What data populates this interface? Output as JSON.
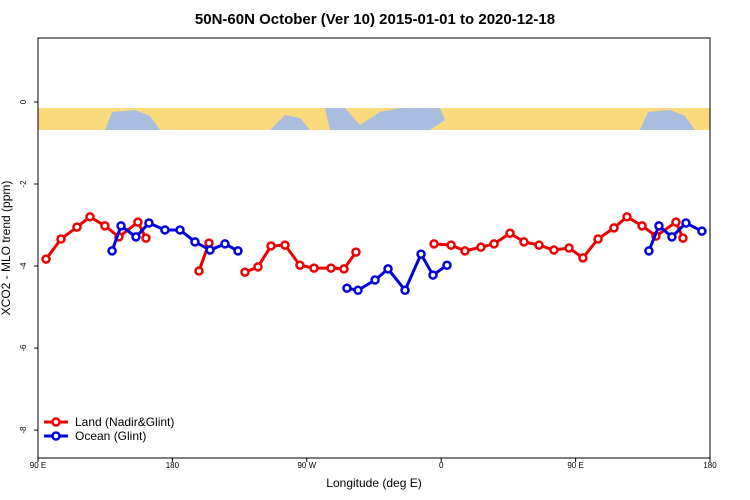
{
  "chart_data": {
    "type": "line",
    "title": "50N-60N October (Ver 10)   2015-01-01 to 2020-12-18",
    "x_label": "Longitude (deg E)",
    "y_label": "XCO2 - MLO trend (ppm)",
    "xlim": [
      90,
      540
    ],
    "ylim": [
      -8.68,
      1.56
    ],
    "xticks": [
      {
        "value": 90,
        "label": "90 E"
      },
      {
        "value": 180,
        "label": "180"
      },
      {
        "value": 270,
        "label": "90 W"
      },
      {
        "value": 360,
        "label": "0"
      },
      {
        "value": 450,
        "label": "90 E"
      },
      {
        "value": 540,
        "label": "180"
      }
    ],
    "yticks": [
      0,
      -2,
      -4,
      -6,
      -8
    ],
    "legend": "bottom-left",
    "series": [
      {
        "name": "Land (Nadir&Glint)",
        "color": "#ee0000",
        "x": [
          95.4,
          105.4,
          116.1,
          124.8,
          134.8,
          144.2,
          156.9,
          162.3,
          null,
          197.8,
          204.5,
          null,
          228.6,
          237.3,
          246.0,
          255.4,
          265.4,
          274.8,
          286.2,
          294.9,
          302.9,
          null,
          355.2,
          366.6,
          375.9,
          386.6,
          395.4,
          406.1,
          415.4,
          425.5,
          435.5,
          445.6,
          454.9,
          465.0,
          475.7,
          484.4,
          494.5,
          503.8,
          517.2,
          521.9
        ],
        "values": [
          -3.83,
          -3.34,
          -3.05,
          -2.8,
          -3.02,
          -3.29,
          -2.93,
          -3.32,
          null,
          -4.12,
          -3.44,
          null,
          -4.15,
          -4.02,
          -3.51,
          -3.49,
          -3.98,
          -4.05,
          -4.05,
          -4.07,
          -3.66,
          null,
          -3.46,
          -3.49,
          -3.63,
          -3.54,
          -3.46,
          -3.2,
          -3.41,
          -3.49,
          -3.61,
          -3.56,
          -3.8,
          -3.34,
          -3.07,
          -2.8,
          -3.02,
          -3.27,
          -2.93,
          -3.32
        ]
      },
      {
        "name": "Ocean (Glint)",
        "color": "#0000dd",
        "x": [
          139.6,
          145.6,
          155.6,
          164.3,
          175.0,
          185.1,
          195.1,
          205.2,
          215.2,
          223.9,
          null,
          296.9,
          304.3,
          315.7,
          324.4,
          335.8,
          346.5,
          354.5,
          363.9,
          null,
          499.1,
          505.8,
          514.5,
          523.9,
          534.6
        ],
        "values": [
          -3.63,
          -3.02,
          -3.29,
          -2.95,
          -3.12,
          -3.12,
          -3.41,
          -3.61,
          -3.46,
          -3.63,
          null,
          -4.54,
          -4.59,
          -4.34,
          -4.07,
          -4.59,
          -3.71,
          -4.22,
          -3.98,
          null,
          -3.63,
          -3.02,
          -3.29,
          -2.95,
          -3.15
        ]
      }
    ]
  }
}
